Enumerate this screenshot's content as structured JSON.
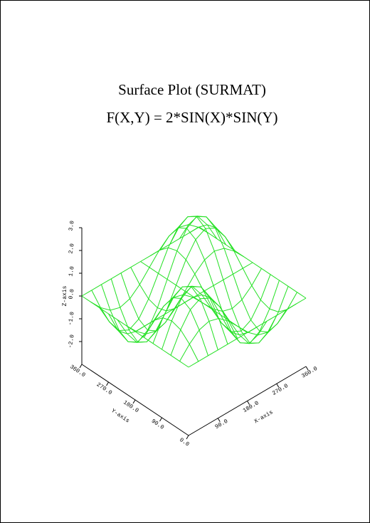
{
  "chart_data": {
    "type": "surface",
    "title": "Surface Plot (SURMAT)",
    "subtitle": "F(X,Y) = 2*SIN(X)*SIN(Y)",
    "x_label": "X-axis",
    "y_label": "Y-axis",
    "z_label": "Z-axis",
    "color": "#22e022",
    "x": [
      0,
      30,
      60,
      90,
      120,
      150,
      180,
      210,
      240,
      270,
      300,
      330,
      360
    ],
    "y": [
      0,
      30,
      60,
      90,
      120,
      150,
      180,
      210,
      240,
      270,
      300,
      330,
      360
    ],
    "z": [
      [
        0,
        0,
        0,
        0,
        0,
        0,
        0,
        0,
        0,
        0,
        0,
        0,
        0
      ],
      [
        0,
        0.5,
        0.87,
        1,
        0.87,
        0.5,
        0,
        -0.5,
        -0.87,
        -1,
        -0.87,
        -0.5,
        0
      ],
      [
        0,
        0.87,
        1.5,
        1.73,
        1.5,
        0.87,
        0,
        -0.87,
        -1.5,
        -1.73,
        -1.5,
        -0.87,
        0
      ],
      [
        0,
        1,
        1.73,
        2,
        1.73,
        1,
        0,
        -1,
        -1.73,
        -2,
        -1.73,
        -1,
        0
      ],
      [
        0,
        0.87,
        1.5,
        1.73,
        1.5,
        0.87,
        0,
        -0.87,
        -1.5,
        -1.73,
        -1.5,
        -0.87,
        0
      ],
      [
        0,
        0.5,
        0.87,
        1,
        0.87,
        0.5,
        0,
        -0.5,
        -0.87,
        -1,
        -0.87,
        -0.5,
        0
      ],
      [
        0,
        0,
        0,
        0,
        0,
        0,
        0,
        0,
        0,
        0,
        0,
        0,
        0
      ],
      [
        0,
        -0.5,
        -0.87,
        -1,
        -0.87,
        -0.5,
        0,
        0.5,
        0.87,
        1,
        0.87,
        0.5,
        0
      ],
      [
        0,
        -0.87,
        -1.5,
        -1.73,
        -1.5,
        -0.87,
        0,
        0.87,
        1.5,
        1.73,
        1.5,
        0.87,
        0
      ],
      [
        0,
        -1,
        -1.73,
        -2,
        -1.73,
        -1,
        0,
        1,
        1.73,
        2,
        1.73,
        1,
        0
      ],
      [
        0,
        -0.87,
        -1.5,
        -1.73,
        -1.5,
        -0.87,
        0,
        0.87,
        1.5,
        1.73,
        1.5,
        0.87,
        0
      ],
      [
        0,
        -0.5,
        -0.87,
        -1,
        -0.87,
        -0.5,
        0,
        0.5,
        0.87,
        1,
        0.87,
        0.5,
        0
      ],
      [
        0,
        0,
        0,
        0,
        0,
        0,
        0,
        0,
        0,
        0,
        0,
        0,
        0
      ]
    ],
    "xlim": [
      0,
      360
    ],
    "ylim": [
      0,
      360
    ],
    "zlim": [
      -3,
      3
    ],
    "xticks": [
      {
        "value": 90,
        "label": "90.0"
      },
      {
        "value": 180,
        "label": "180.0"
      },
      {
        "value": 270,
        "label": "270.0"
      },
      {
        "value": 360,
        "label": "360.0"
      }
    ],
    "yticks": [
      {
        "value": 0,
        "label": "0.0"
      },
      {
        "value": 90,
        "label": "90.0"
      },
      {
        "value": 180,
        "label": "180.0"
      },
      {
        "value": 270,
        "label": "270.0"
      },
      {
        "value": 360,
        "label": "360.0"
      }
    ],
    "zticks": [
      {
        "value": -2,
        "label": "-2.0"
      },
      {
        "value": -1,
        "label": "-1.0"
      },
      {
        "value": 0,
        "label": "0.0"
      },
      {
        "value": 1,
        "label": "1.0"
      },
      {
        "value": 2,
        "label": "2.0"
      },
      {
        "value": 3,
        "label": "3.0"
      }
    ]
  }
}
